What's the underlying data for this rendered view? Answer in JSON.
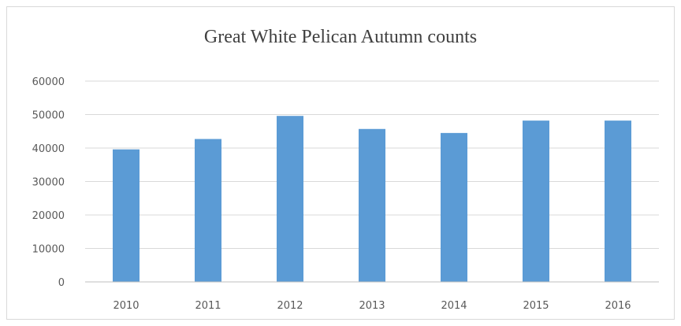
{
  "chart_data": {
    "type": "bar",
    "title": "Great White Pelican Autumn counts",
    "xlabel": "",
    "ylabel": "",
    "categories": [
      "2010",
      "2011",
      "2012",
      "2013",
      "2014",
      "2015",
      "2016"
    ],
    "values": [
      39600,
      42700,
      49600,
      45700,
      44500,
      48200,
      48200
    ],
    "ylim": [
      0,
      60000
    ],
    "yticks": [
      "0",
      "10000",
      "20000",
      "30000",
      "40000",
      "50000",
      "60000"
    ],
    "grid": true,
    "legend": "none",
    "bar_color": "#5b9bd5",
    "gridline_color": "#d9d9d9",
    "text_color": "#595959"
  }
}
